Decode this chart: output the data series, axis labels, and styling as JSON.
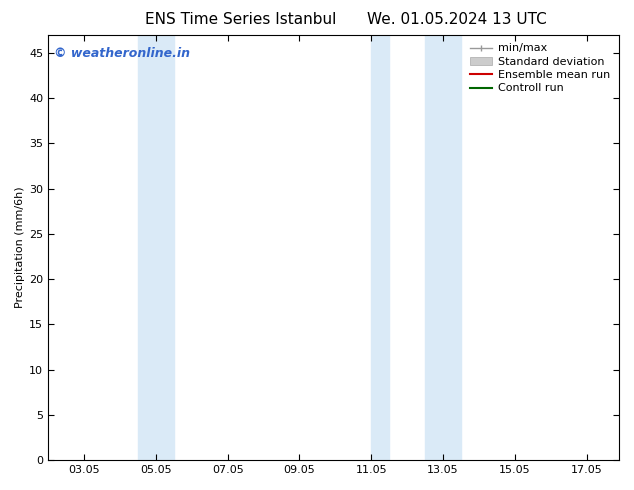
{
  "title_left": "ENS Time Series Istanbul",
  "title_right": "We. 01.05.2024 13 UTC",
  "ylabel": "Precipitation (mm/6h)",
  "background_color": "#ffffff",
  "plot_bg_color": "#ffffff",
  "ylim": [
    0,
    47
  ],
  "yticks": [
    0,
    5,
    10,
    15,
    20,
    25,
    30,
    35,
    40,
    45
  ],
  "xtick_positions": [
    3,
    5,
    7,
    9,
    11,
    13,
    15,
    17
  ],
  "xtick_labels": [
    "03.05",
    "05.05",
    "07.05",
    "09.05",
    "11.05",
    "13.05",
    "15.05",
    "17.05"
  ],
  "xlim": [
    2.0,
    17.9
  ],
  "shaded_regions": [
    {
      "x_start": 4.5,
      "x_end": 5.5,
      "color": "#daeaf7"
    },
    {
      "x_start": 11.0,
      "x_end": 11.5,
      "color": "#daeaf7"
    },
    {
      "x_start": 12.5,
      "x_end": 13.5,
      "color": "#daeaf7"
    }
  ],
  "watermark_text": "© weatheronline.in",
  "watermark_color": "#3366cc",
  "watermark_fontsize": 9,
  "title_fontsize": 11,
  "axis_label_fontsize": 8,
  "tick_fontsize": 8,
  "legend_fontsize": 8
}
